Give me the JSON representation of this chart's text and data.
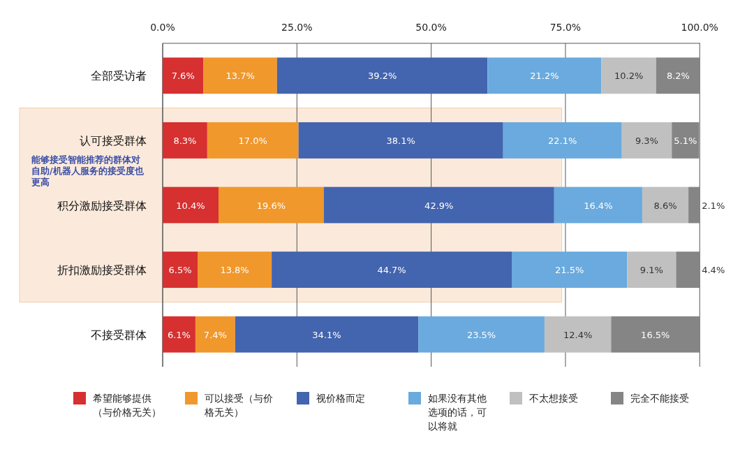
{
  "chart_data": {
    "type": "bar",
    "orientation": "horizontal",
    "stacked": true,
    "categories": [
      "全部受访者",
      "认可接受群体",
      "积分激励接受群体",
      "折扣激励接受群体",
      "不接受群体"
    ],
    "series": [
      {
        "name": "希望能够提供（与价格无关）",
        "color": "#d63030",
        "values": [
          7.6,
          8.3,
          10.4,
          6.5,
          6.1
        ],
        "value_labels": [
          "7.6%",
          "8.3%",
          "10.4%",
          "6.5%",
          "6.1%"
        ]
      },
      {
        "name": "可以接受（与价格无关）",
        "color": "#f0982c",
        "values": [
          13.7,
          17.0,
          19.6,
          13.8,
          7.4
        ],
        "value_labels": [
          "13.7%",
          "17.0%",
          "19.6%",
          "13.8%",
          "7.4%"
        ]
      },
      {
        "name": "视价格而定",
        "color": "#4364ae",
        "values": [
          39.2,
          38.1,
          42.9,
          44.7,
          34.1
        ],
        "value_labels": [
          "39.2%",
          "38.1%",
          "42.9%",
          "44.7%",
          "34.1%"
        ]
      },
      {
        "name": "如果没有其他选项的话，可以将就",
        "color": "#6aaade",
        "values": [
          21.2,
          22.1,
          16.4,
          21.5,
          23.5
        ],
        "value_labels": [
          "21.2%",
          "22.1%",
          "16.4%",
          "21.5%",
          "23.5%"
        ]
      },
      {
        "name": "不太想接受",
        "color": "#c0c0c0",
        "values": [
          10.2,
          9.3,
          8.6,
          9.1,
          12.4
        ],
        "value_labels": [
          "10.2%",
          "9.3%",
          "8.6%",
          "9.1%",
          "12.4%"
        ]
      },
      {
        "name": "完全不能接受",
        "color": "#858585",
        "values": [
          8.2,
          5.1,
          2.1,
          4.4,
          16.5
        ],
        "value_labels": [
          "8.2%",
          "5.1%",
          "2.1%",
          "4.4%",
          "16.5%"
        ]
      }
    ],
    "xlim": [
      0,
      100.1
    ],
    "xticks": [
      {
        "value": 0,
        "label": "0.0%"
      },
      {
        "value": 25,
        "label": "25.0%"
      },
      {
        "value": 50,
        "label": "50.0%"
      },
      {
        "value": 75,
        "label": "75.0%"
      },
      {
        "value": 100,
        "label": "100.0%"
      }
    ],
    "grid": "x",
    "legend": "bottom",
    "bands": [
      {
        "axis": "y",
        "from": "认可接受群体",
        "to": "折扣激励接受群体",
        "label": "能够接受智能推荐的群体对自助/机器人服务的接受度也更高",
        "color": "#fbeadb"
      }
    ]
  }
}
